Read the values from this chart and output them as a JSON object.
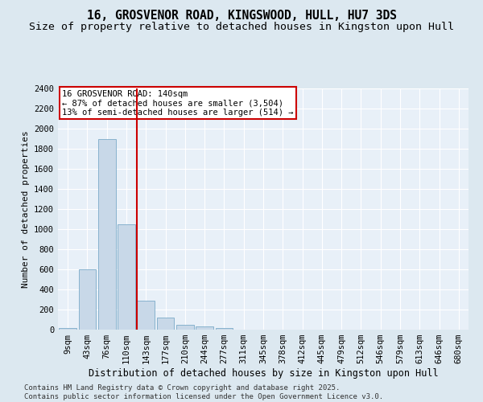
{
  "title": "16, GROSVENOR ROAD, KINGSWOOD, HULL, HU7 3DS",
  "subtitle": "Size of property relative to detached houses in Kingston upon Hull",
  "xlabel": "Distribution of detached houses by size in Kingston upon Hull",
  "ylabel": "Number of detached properties",
  "categories": [
    "9sqm",
    "43sqm",
    "76sqm",
    "110sqm",
    "143sqm",
    "177sqm",
    "210sqm",
    "244sqm",
    "277sqm",
    "311sqm",
    "345sqm",
    "378sqm",
    "412sqm",
    "445sqm",
    "479sqm",
    "512sqm",
    "546sqm",
    "579sqm",
    "613sqm",
    "646sqm",
    "680sqm"
  ],
  "values": [
    15,
    600,
    1900,
    1050,
    290,
    120,
    50,
    30,
    20,
    0,
    0,
    0,
    0,
    0,
    0,
    0,
    0,
    0,
    0,
    0,
    0
  ],
  "bar_color": "#c8d8e8",
  "bar_edge_color": "#7aaac8",
  "vline_x_index": 4,
  "vline_color": "#cc0000",
  "annotation_text": "16 GROSVENOR ROAD: 140sqm\n← 87% of detached houses are smaller (3,504)\n13% of semi-detached houses are larger (514) →",
  "annotation_box_color": "#cc0000",
  "ylim": [
    0,
    2400
  ],
  "yticks": [
    0,
    200,
    400,
    600,
    800,
    1000,
    1200,
    1400,
    1600,
    1800,
    2000,
    2200,
    2400
  ],
  "title_fontsize": 10.5,
  "subtitle_fontsize": 9.5,
  "xlabel_fontsize": 8.5,
  "ylabel_fontsize": 8,
  "tick_fontsize": 7.5,
  "annotation_fontsize": 7.5,
  "footer_text": "Contains HM Land Registry data © Crown copyright and database right 2025.\nContains public sector information licensed under the Open Government Licence v3.0.",
  "footer_fontsize": 6.5,
  "background_color": "#dce8f0",
  "plot_bg_color": "#e8f0f8"
}
